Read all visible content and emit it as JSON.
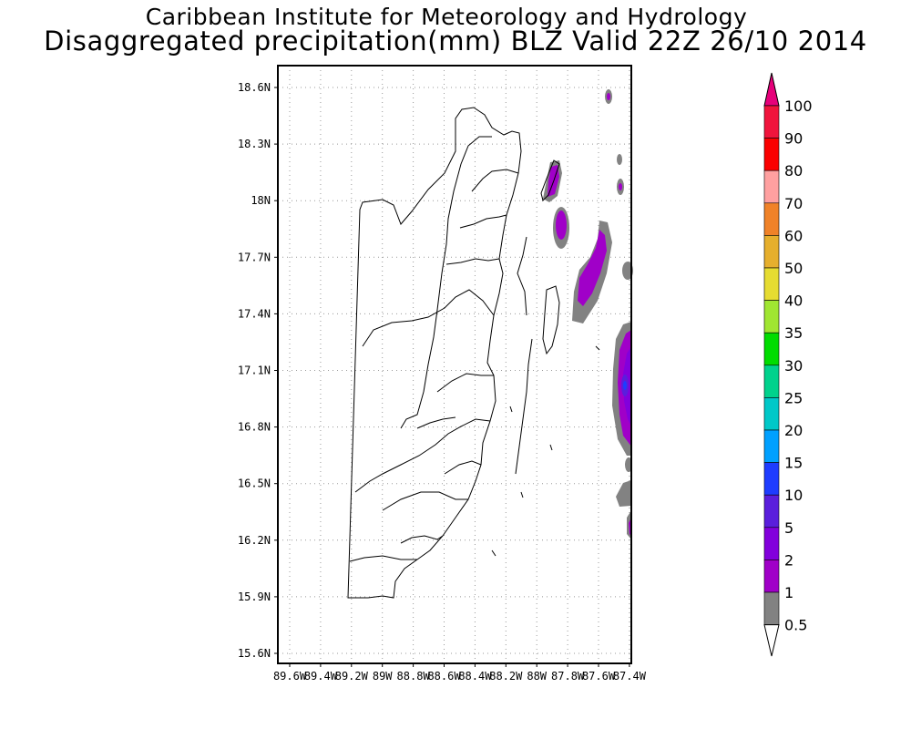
{
  "header": {
    "institute": "Caribbean Institute for Meteorology and Hydrology",
    "product": "Disaggregated precipitation(mm) BLZ Valid 22Z 26/10 2014"
  },
  "map": {
    "region": "Belize",
    "lat_ticks": [
      "18.6N",
      "18.3N",
      "18N",
      "17.7N",
      "17.4N",
      "17.1N",
      "16.8N",
      "16.5N",
      "16.2N",
      "15.9N",
      "15.6N"
    ],
    "lon_ticks": [
      "89.6W",
      "89.4W",
      "89.2W",
      "89W",
      "88.8W",
      "88.6W",
      "88.4W",
      "88.2W",
      "88W",
      "87.8W",
      "87.6W",
      "87.4W"
    ],
    "grid": "dotted"
  },
  "colorbar": {
    "levels": [
      "100",
      "90",
      "80",
      "70",
      "60",
      "50",
      "40",
      "35",
      "30",
      "25",
      "20",
      "15",
      "10",
      "5",
      "2",
      "1",
      "0.5"
    ],
    "colors": [
      "#f0143c",
      "#fa0000",
      "#ffa0a0",
      "#f08228",
      "#e6af2d",
      "#e6dc32",
      "#a0e632",
      "#00dc00",
      "#00d28c",
      "#00c8c8",
      "#00a0ff",
      "#1e3cff",
      "#5a1edc",
      "#8200dc",
      "#a000c8",
      "#828282"
    ],
    "top_arrow_color": "#e6007a",
    "bottom_arrow_color": "#ffffff"
  },
  "precip_colors": {
    "low": "#828282",
    "mid": "#a000c8",
    "high": "#8200dc",
    "peak": "#5a1edc",
    "max": "#1e3cff"
  }
}
